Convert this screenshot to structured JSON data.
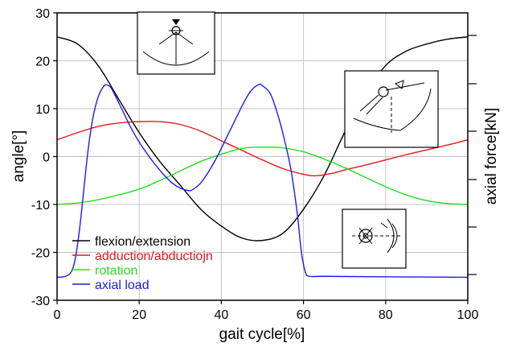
{
  "chart_data": {
    "type": "line",
    "xlabel": "gait cycle[%]",
    "ylabel": "angle[°]",
    "y2label": "axial force[kN]",
    "xlim": [
      0,
      100
    ],
    "ylim": [
      -30,
      30
    ],
    "x_ticks": [
      "0",
      "20",
      "40",
      "60",
      "80",
      "100"
    ],
    "y_ticks": [
      "30",
      "20",
      "10",
      "0",
      "-10",
      "-20",
      "-30"
    ],
    "grid": true,
    "legend_position": "bottom-left",
    "series": [
      {
        "name": "flexion/extension",
        "color": "#000000",
        "points": [
          [
            0,
            25
          ],
          [
            5,
            23.5
          ],
          [
            10,
            19
          ],
          [
            15,
            12
          ],
          [
            20,
            5
          ],
          [
            25,
            -1
          ],
          [
            30,
            -6
          ],
          [
            35,
            -11
          ],
          [
            40,
            -14.5
          ],
          [
            45,
            -17
          ],
          [
            50,
            -17.5
          ],
          [
            55,
            -16
          ],
          [
            60,
            -11
          ],
          [
            65,
            -4
          ],
          [
            70,
            5
          ],
          [
            75,
            13
          ],
          [
            80,
            19
          ],
          [
            85,
            22
          ],
          [
            90,
            23.5
          ],
          [
            95,
            24.5
          ],
          [
            100,
            25
          ]
        ]
      },
      {
        "name": "adduction/abductiojn",
        "color": "#e8141c",
        "points": [
          [
            0,
            3.5
          ],
          [
            5,
            5
          ],
          [
            10,
            6.3
          ],
          [
            15,
            7
          ],
          [
            20,
            7.3
          ],
          [
            25,
            7.3
          ],
          [
            30,
            6.7
          ],
          [
            35,
            5.3
          ],
          [
            40,
            3.3
          ],
          [
            45,
            1.3
          ],
          [
            50,
            -0.7
          ],
          [
            55,
            -2.5
          ],
          [
            60,
            -3.7
          ],
          [
            63,
            -4
          ],
          [
            67,
            -3.5
          ],
          [
            70,
            -2.8
          ],
          [
            75,
            -1.8
          ],
          [
            80,
            -0.7
          ],
          [
            85,
            0.4
          ],
          [
            90,
            1.4
          ],
          [
            95,
            2.4
          ],
          [
            100,
            3.5
          ]
        ]
      },
      {
        "name": "rotation",
        "color": "#22dd22",
        "points": [
          [
            0,
            -10
          ],
          [
            5,
            -9.7
          ],
          [
            10,
            -9
          ],
          [
            15,
            -8
          ],
          [
            20,
            -6.8
          ],
          [
            25,
            -5
          ],
          [
            30,
            -3
          ],
          [
            35,
            -1
          ],
          [
            40,
            0.5
          ],
          [
            45,
            1.7
          ],
          [
            50,
            2
          ],
          [
            55,
            1.8
          ],
          [
            60,
            1
          ],
          [
            65,
            -0.5
          ],
          [
            70,
            -2.3
          ],
          [
            75,
            -4.3
          ],
          [
            80,
            -6.3
          ],
          [
            85,
            -8
          ],
          [
            90,
            -9.2
          ],
          [
            95,
            -9.8
          ],
          [
            100,
            -10
          ]
        ]
      },
      {
        "name": "axial load",
        "color": "#1c1cee",
        "points": [
          [
            0,
            -25.2
          ],
          [
            2,
            -25
          ],
          [
            3.5,
            -24
          ],
          [
            4.5,
            -21
          ],
          [
            5.5,
            -15
          ],
          [
            6.5,
            -7
          ],
          [
            7.5,
            1
          ],
          [
            8.5,
            7
          ],
          [
            9.5,
            11
          ],
          [
            10.5,
            13.5
          ],
          [
            11.5,
            14.8
          ],
          [
            12,
            15
          ],
          [
            13,
            14.5
          ],
          [
            14,
            13
          ],
          [
            16,
            9.5
          ],
          [
            18,
            6
          ],
          [
            20,
            3
          ],
          [
            22,
            0.5
          ],
          [
            24,
            -1.8
          ],
          [
            26,
            -3.8
          ],
          [
            28,
            -5.5
          ],
          [
            30,
            -6.6
          ],
          [
            32,
            -7.1
          ],
          [
            33,
            -6.9
          ],
          [
            35,
            -5.5
          ],
          [
            37,
            -3
          ],
          [
            39,
            0
          ],
          [
            41,
            3.5
          ],
          [
            43,
            7
          ],
          [
            45,
            10.5
          ],
          [
            47,
            13.5
          ],
          [
            49,
            15
          ],
          [
            50,
            14.8
          ],
          [
            52,
            13
          ],
          [
            54,
            8
          ],
          [
            55.5,
            3
          ],
          [
            57,
            -3
          ],
          [
            58.5,
            -12
          ],
          [
            59.5,
            -20
          ],
          [
            60.5,
            -24.2
          ],
          [
            61.5,
            -25
          ],
          [
            65,
            -25
          ],
          [
            80,
            -25.1
          ],
          [
            100,
            -25.2
          ]
        ]
      }
    ]
  },
  "insets": [
    {
      "name": "hip-flexion-sketch-inset"
    },
    {
      "name": "hip-abduction-sketch-inset"
    },
    {
      "name": "hip-rotation-sketch-inset"
    }
  ]
}
